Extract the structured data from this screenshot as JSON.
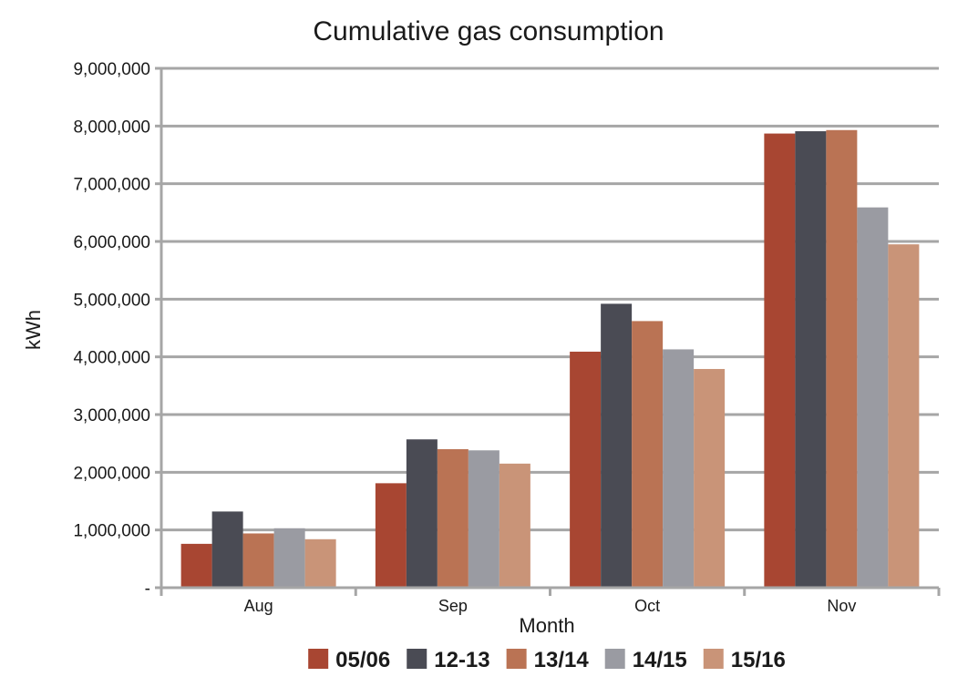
{
  "chart_data": {
    "type": "bar",
    "title": "Cumulative gas consumption",
    "xlabel": "Month",
    "ylabel": "kWh",
    "categories": [
      "Aug",
      "Sep",
      "Oct",
      "Nov"
    ],
    "ylim": [
      0,
      9000000
    ],
    "yticks": [
      0,
      1000000,
      2000000,
      3000000,
      4000000,
      5000000,
      6000000,
      7000000,
      8000000,
      9000000
    ],
    "ytick_labels": [
      "-",
      "1,000,000",
      "2,000,000",
      "3,000,000",
      "4,000,000",
      "5,000,000",
      "6,000,000",
      "7,000,000",
      "8,000,000",
      "9,000,000"
    ],
    "grid": true,
    "legend_position": "bottom",
    "series": [
      {
        "name": "05/06",
        "color": "#a84632",
        "values": [
          760000,
          1810000,
          4090000,
          7870000
        ]
      },
      {
        "name": "12-13",
        "color": "#4a4b54",
        "values": [
          1320000,
          2570000,
          4920000,
          7910000
        ]
      },
      {
        "name": "13/14",
        "color": "#ba7354",
        "values": [
          940000,
          2400000,
          4620000,
          7930000
        ]
      },
      {
        "name": "14/15",
        "color": "#9a9ba2",
        "values": [
          1030000,
          2380000,
          4130000,
          6590000
        ]
      },
      {
        "name": "15/16",
        "color": "#c99478",
        "values": [
          840000,
          2150000,
          3790000,
          5950000
        ]
      }
    ]
  }
}
